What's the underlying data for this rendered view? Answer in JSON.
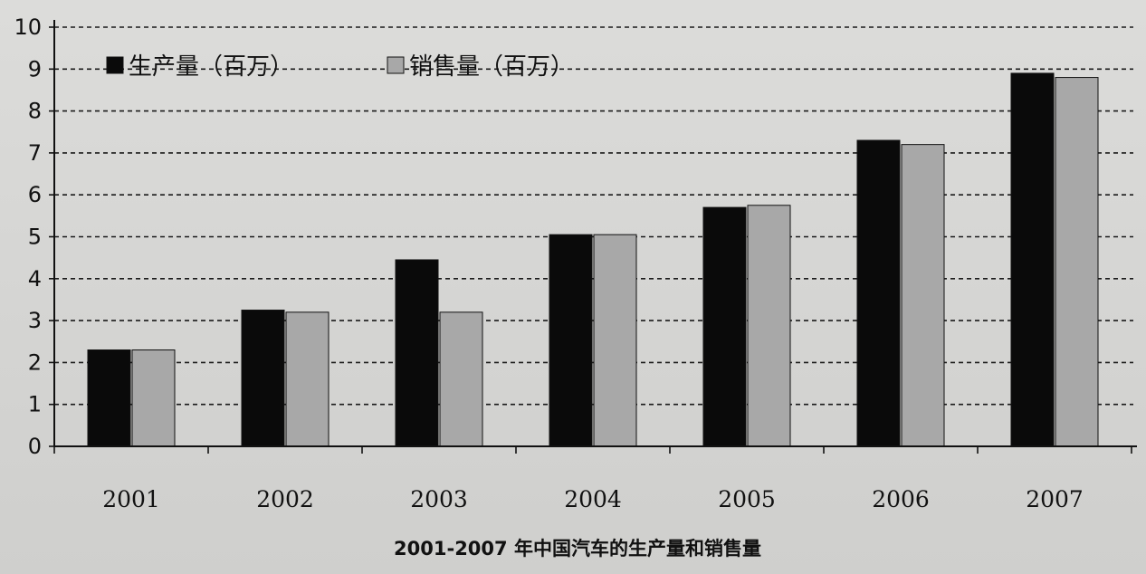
{
  "chart_data": {
    "type": "bar",
    "title": "2001-2007 年中国汽车的生产量和销售量",
    "xlabel": "",
    "ylabel": "",
    "categories": [
      "2001",
      "2002",
      "2003",
      "2004",
      "2005",
      "2006",
      "2007"
    ],
    "series": [
      {
        "name": "生产量（百万）",
        "color": "#0a0a0a",
        "values": [
          2.3,
          3.25,
          4.45,
          5.05,
          5.7,
          7.3,
          8.9
        ]
      },
      {
        "name": "销售量（百万）",
        "color": "#a8a8a8",
        "values": [
          2.3,
          3.2,
          3.2,
          5.05,
          5.75,
          7.2,
          8.8
        ]
      }
    ],
    "ylim": [
      0,
      10
    ],
    "yticks": [
      "0",
      "1",
      "2",
      "3",
      "4",
      "5",
      "6",
      "7",
      "8",
      "9",
      "10"
    ],
    "grid": true,
    "legend_position": "top-left"
  }
}
